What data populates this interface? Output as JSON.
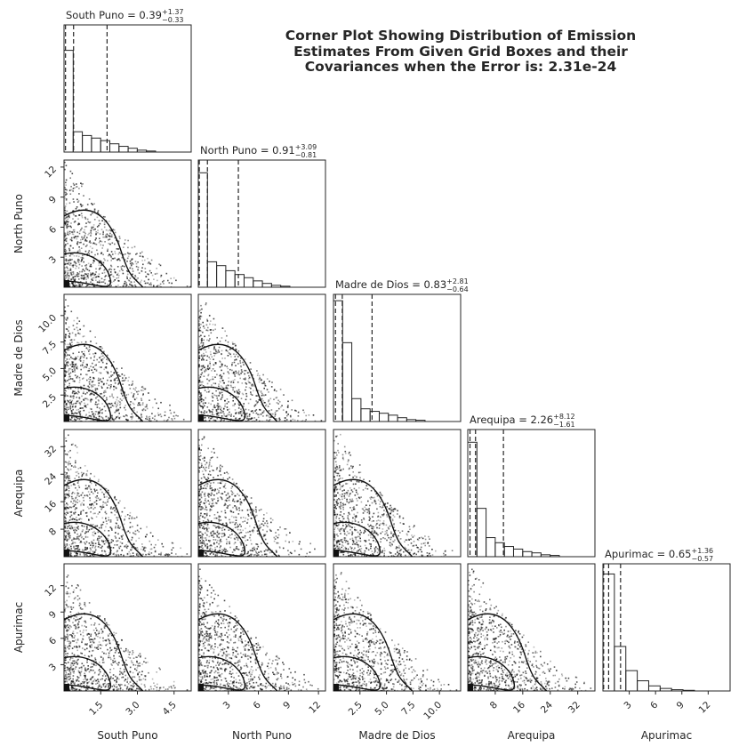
{
  "title": {
    "lines": [
      "Corner Plot Showing Distribution of Emission",
      "Estimates From Given Grid Boxes and their",
      "Covariances when the Error is: 2.31e-24"
    ]
  },
  "chart_data": {
    "type": "corner",
    "grid": false,
    "parameters": [
      {
        "name": "South Puno",
        "median": "0.39",
        "plus": "+1.37",
        "minus": "−0.33",
        "q16": 0.06,
        "q50": 0.39,
        "q84": 1.76,
        "range": [
          0.0,
          5.2
        ],
        "ticks": [
          1.5,
          3.0,
          4.5
        ],
        "tick_labels": [
          "1.5",
          "3.0",
          "4.5"
        ],
        "hist_counts": [
          0.8,
          0.16,
          0.13,
          0.11,
          0.09,
          0.065,
          0.045,
          0.03,
          0.015,
          0.008
        ]
      },
      {
        "name": "North Puno",
        "median": "0.91",
        "plus": "+3.09",
        "minus": "−0.81",
        "q16": 0.1,
        "q50": 0.91,
        "q84": 4.0,
        "range": [
          0.0,
          12.7
        ],
        "ticks": [
          3,
          6,
          9,
          12
        ],
        "tick_labels": [
          "3",
          "6",
          "9",
          "12"
        ],
        "hist_counts": [
          0.9,
          0.2,
          0.17,
          0.13,
          0.1,
          0.075,
          0.05,
          0.03,
          0.015,
          0.008
        ]
      },
      {
        "name": "Madre de Dios",
        "median": "0.83",
        "plus": "+2.81",
        "minus": "−0.64",
        "q16": 0.19,
        "q50": 0.83,
        "q84": 3.64,
        "range": [
          0.0,
          12.0
        ],
        "ticks": [
          2.5,
          5.0,
          7.5,
          10.0
        ],
        "tick_labels": [
          "2.5",
          "5.0",
          "7.5",
          "10.0"
        ],
        "hist_counts": [
          0.95,
          0.62,
          0.18,
          0.1,
          0.08,
          0.065,
          0.05,
          0.03,
          0.015,
          0.01
        ]
      },
      {
        "name": "Arequipa",
        "median": "2.26",
        "plus": "+8.12",
        "minus": "−1.61",
        "q16": 0.65,
        "q50": 2.26,
        "q84": 10.38,
        "range": [
          0.0,
          37.0
        ],
        "ticks": [
          8,
          16,
          24,
          32
        ],
        "tick_labels": [
          "8",
          "16",
          "24",
          "32"
        ],
        "hist_counts": [
          0.9,
          0.38,
          0.15,
          0.11,
          0.08,
          0.06,
          0.04,
          0.03,
          0.015,
          0.01
        ]
      },
      {
        "name": "Apurimac",
        "median": "0.65",
        "plus": "+1.36",
        "minus": "−0.57",
        "q16": 0.08,
        "q50": 0.65,
        "q84": 2.01,
        "range": [
          0.0,
          14.5
        ],
        "ticks": [
          3,
          6,
          9,
          12
        ],
        "tick_labels": [
          "3",
          "6",
          "9",
          "12"
        ],
        "hist_counts": [
          0.92,
          0.35,
          0.16,
          0.08,
          0.04,
          0.02,
          0.01,
          0.005
        ]
      }
    ],
    "y_ticks": {
      "North Puno": {
        "values": [
          3,
          6,
          9,
          12
        ],
        "labels": [
          "3",
          "6",
          "9",
          "12"
        ]
      },
      "Madre de Dios": {
        "values": [
          2.5,
          5.0,
          7.5,
          10.0
        ],
        "labels": [
          "2.5",
          "5.0",
          "7.5",
          "10.0"
        ]
      },
      "Arequipa": {
        "values": [
          8,
          16,
          24,
          32
        ],
        "labels": [
          "8",
          "16",
          "24",
          "32"
        ]
      },
      "Apurimac": {
        "values": [
          3,
          6,
          9,
          12
        ],
        "labels": [
          "3",
          "6",
          "9",
          "12"
        ]
      }
    },
    "annotation": "median with 16th/84th percentile dashed lines"
  }
}
